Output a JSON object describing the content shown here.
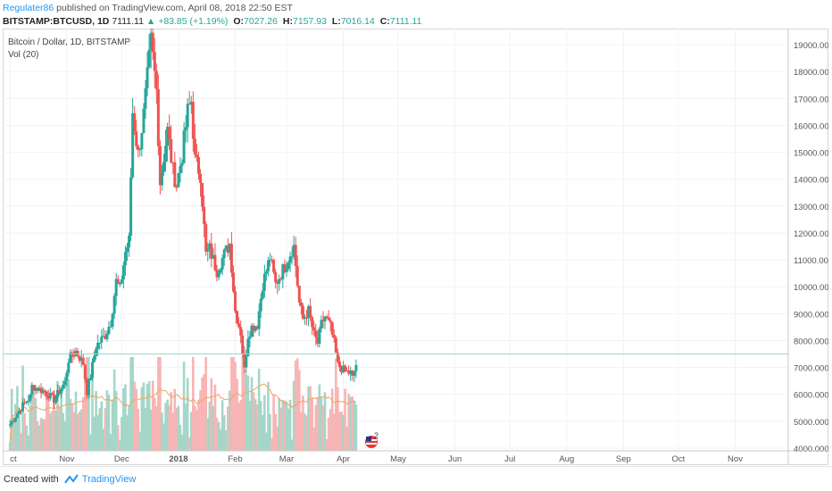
{
  "header": {
    "author": "Regulater86",
    "published_text": "published on TradingView.com, April 08, 2018 22:50 EST"
  },
  "ohlc": {
    "symbol": "BITSTAMP:BTCUSD, 1D",
    "last": "7111.11",
    "change": "+83.85 (+1.19%)",
    "o_label": "O:",
    "o_value": "7027.26",
    "h_label": "H:",
    "h_value": "7157.93",
    "l_label": "L:",
    "l_value": "7016.14",
    "c_label": "C:",
    "c_value": "7111.11"
  },
  "legend": {
    "title": "Bitcoin / Dollar, 1D, BITSTAMP",
    "volume": "Vol (20)"
  },
  "footer": {
    "created_with": "Created with",
    "brand": "TradingView"
  },
  "badge": {
    "count": "2",
    "flag_icon": "us-flag-icon"
  },
  "colors": {
    "up": "#26a69a",
    "down": "#ef5350",
    "vol_up": "#a5d6c8",
    "vol_down": "#f7b5b5",
    "ma": "#f4a460",
    "price_line": "#9ed6cc"
  },
  "chart_data": {
    "type": "candlestick",
    "symbol": "BITSTAMP:BTCUSD",
    "interval": "1D",
    "y_axis": {
      "ylim": [
        3900,
        19600
      ],
      "ticks": [
        4000,
        5000,
        6000,
        7000,
        8000,
        9000,
        10000,
        11000,
        12000,
        13000,
        14000,
        15000,
        16000,
        17000,
        18000,
        19000
      ],
      "tick_labels": [
        "4000.0000",
        "5000.0000",
        "6000.0000",
        "7000.0000",
        "8000.0000",
        "9000.0000",
        "10000.0000",
        "11000.0000",
        "12000.0000",
        "13000.0000",
        "14000.0000",
        "15000.0000",
        "16000.0000",
        "17000.0000",
        "18000.0000",
        "19000.0000"
      ]
    },
    "x_axis": {
      "tick_labels": [
        "ct",
        "Nov",
        "Dec",
        "2018",
        "Feb",
        "Mar",
        "Apr",
        "May",
        "Jun",
        "Jul",
        "Aug",
        "Sep",
        "Oct",
        "Nov"
      ],
      "bold_labels": [
        "2018"
      ]
    },
    "current_price": 7500,
    "price_path": [
      [
        "2017-10-01",
        4880
      ],
      [
        "2017-10-08",
        5600
      ],
      [
        "2017-10-12",
        5900
      ],
      [
        "2017-10-13",
        6300
      ],
      [
        "2017-10-20",
        6100
      ],
      [
        "2017-10-25",
        5800
      ],
      [
        "2017-10-31",
        6450
      ],
      [
        "2017-11-02",
        7300
      ],
      [
        "2017-11-06",
        7600
      ],
      [
        "2017-11-10",
        7150
      ],
      [
        "2017-11-12",
        6100
      ],
      [
        "2017-11-14",
        6700
      ],
      [
        "2017-11-17",
        7800
      ],
      [
        "2017-11-22",
        8200
      ],
      [
        "2017-11-25",
        8700
      ],
      [
        "2017-11-28",
        10200
      ],
      [
        "2017-11-30",
        9900
      ],
      [
        "2017-12-03",
        11300
      ],
      [
        "2017-12-05",
        11700
      ],
      [
        "2017-12-07",
        16500
      ],
      [
        "2017-12-10",
        14900
      ],
      [
        "2017-12-13",
        16400
      ],
      [
        "2017-12-17",
        19100
      ],
      [
        "2017-12-20",
        17300
      ],
      [
        "2017-12-22",
        13900
      ],
      [
        "2017-12-26",
        15800
      ],
      [
        "2017-12-29",
        14300
      ],
      [
        "2017-12-31",
        13800
      ],
      [
        "2018-01-03",
        14900
      ],
      [
        "2018-01-06",
        16500
      ],
      [
        "2018-01-08",
        16900
      ],
      [
        "2018-01-10",
        14700
      ],
      [
        "2018-01-13",
        14200
      ],
      [
        "2018-01-16",
        11200
      ],
      [
        "2018-01-18",
        11400
      ],
      [
        "2018-01-22",
        10600
      ],
      [
        "2018-01-26",
        11200
      ],
      [
        "2018-01-29",
        11600
      ],
      [
        "2018-02-01",
        9100
      ],
      [
        "2018-02-04",
        8300
      ],
      [
        "2018-02-06",
        6900
      ],
      [
        "2018-02-08",
        8200
      ],
      [
        "2018-02-10",
        8500
      ],
      [
        "2018-02-13",
        8600
      ],
      [
        "2018-02-16",
        10100
      ],
      [
        "2018-02-20",
        11100
      ],
      [
        "2018-02-23",
        10100
      ],
      [
        "2018-02-26",
        10500
      ],
      [
        "2018-03-01",
        10900
      ],
      [
        "2018-03-04",
        11400
      ],
      [
        "2018-03-05",
        11500
      ],
      [
        "2018-03-08",
        9400
      ],
      [
        "2018-03-10",
        8800
      ],
      [
        "2018-03-13",
        9100
      ],
      [
        "2018-03-16",
        8200
      ],
      [
        "2018-03-18",
        7900
      ],
      [
        "2018-03-20",
        8600
      ],
      [
        "2018-03-22",
        8900
      ],
      [
        "2018-03-25",
        8500
      ],
      [
        "2018-03-27",
        7900
      ],
      [
        "2018-03-29",
        7100
      ],
      [
        "2018-04-01",
        6900
      ],
      [
        "2018-04-04",
        6800
      ],
      [
        "2018-04-05",
        6800
      ],
      [
        "2018-04-06",
        6600
      ],
      [
        "2018-04-08",
        7111
      ]
    ],
    "volume_ma_visible": true
  }
}
